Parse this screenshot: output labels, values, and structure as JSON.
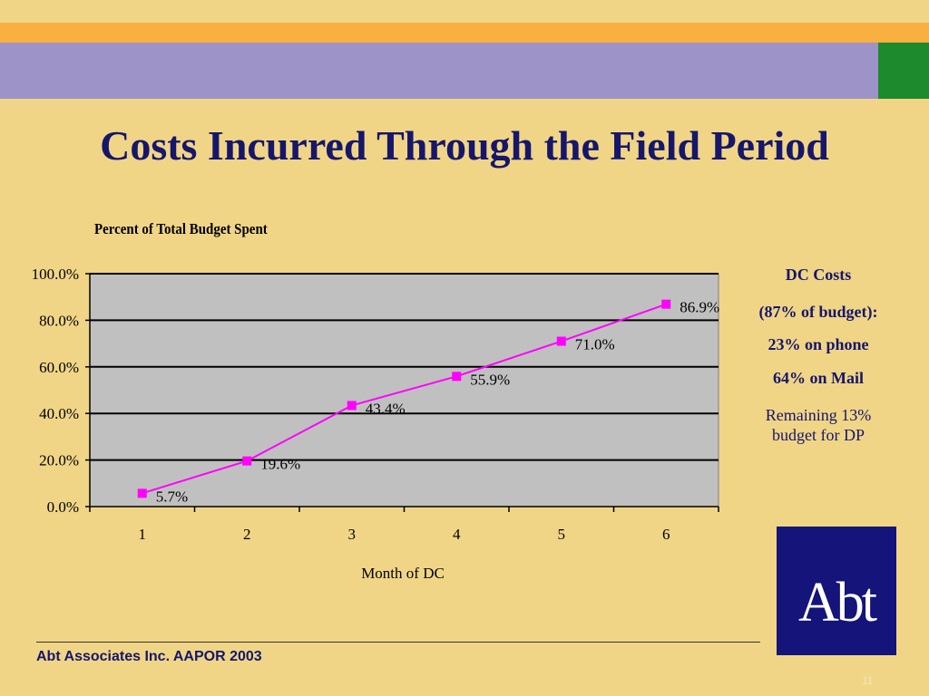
{
  "slide": {
    "title": "Costs Incurred Through the Field Period",
    "footer": "Abt Associates Inc.  AAPOR 2003",
    "page_number": "11",
    "logo_text": "Abt"
  },
  "side_notes": {
    "line1": "DC Costs",
    "line2": "(87% of budget):",
    "line3": "23% on phone",
    "line4": "64% on Mail",
    "line5": "Remaining 13% budget for DP"
  },
  "colors": {
    "background": "#F0D587",
    "band_orange": "#F8B040",
    "band_purple": "#9D93C8",
    "band_green": "#1E8A2E",
    "title": "#16166B",
    "plot_area": "#C0C0C0",
    "series_line": "#FF00FF",
    "logo_bg": "#14147A"
  },
  "chart_data": {
    "type": "line",
    "title": "Percent of Total Budget Spent",
    "xlabel": "Month of DC",
    "ylabel": "",
    "categories": [
      "1",
      "2",
      "3",
      "4",
      "5",
      "6"
    ],
    "series": [
      {
        "values": [
          5.7,
          19.6,
          43.4,
          55.9,
          71.0,
          86.9
        ],
        "data_labels": [
          "5.7%",
          "19.6%",
          "43.4%",
          "55.9%",
          "71.0%",
          "86.9%"
        ]
      }
    ],
    "ylim": [
      0,
      100
    ],
    "yticks": [
      0,
      20,
      40,
      60,
      80,
      100
    ],
    "ytick_labels": [
      "0.0%",
      "20.0%",
      "40.0%",
      "60.0%",
      "80.0%",
      "100.0%"
    ],
    "grid": true,
    "legend": "none",
    "marker": "square"
  }
}
